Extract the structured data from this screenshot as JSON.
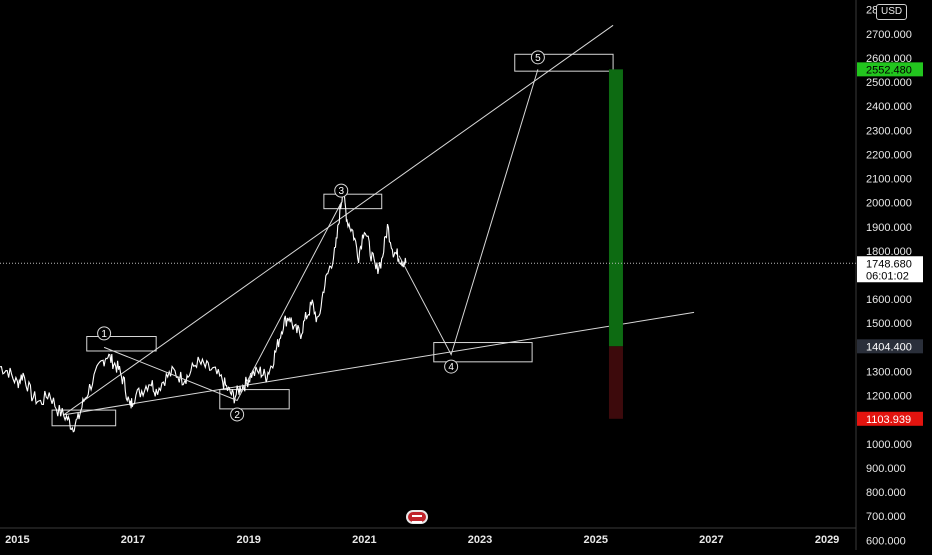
{
  "currency": "USD",
  "header_tick": "28",
  "colors": {
    "background": "#000000",
    "price_line": "#ffffff",
    "overlay_line": "#d8d8d8",
    "target_bar": "#0d6b12",
    "stop_bar": "#3d0a0c",
    "target_label_bg": "#22c51e",
    "stop_label_bg": "#e3140f",
    "current_label_bg": "#ffffff",
    "entry_label_bg": "#2a2f3a"
  },
  "price_labels": {
    "target": "2552.480",
    "current": "1748.680",
    "countdown": "06:01:02",
    "entry": "1404.400",
    "stop": "1103.939"
  },
  "wave_labels": [
    "1",
    "2",
    "3",
    "4",
    "5"
  ],
  "chart_data": {
    "type": "line",
    "title": "",
    "xlabel": "",
    "ylabel": "",
    "ylim": [
      560,
      2840
    ],
    "xlim": [
      2014.7,
      2029.5
    ],
    "grid": false,
    "x_ticks": [
      "2015",
      "2017",
      "2019",
      "2021",
      "2023",
      "2025",
      "2027",
      "2029"
    ],
    "y_ticks": [
      "600.000",
      "700.000",
      "800.000",
      "900.000",
      "1000.000",
      "1100.000",
      "1200.000",
      "1300.000",
      "1400.000",
      "1500.000",
      "1600.000",
      "1700.000",
      "1800.000",
      "1900.000",
      "2000.000",
      "2100.000",
      "2200.000",
      "2300.000",
      "2400.000",
      "2500.000",
      "2600.000",
      "2700.000"
    ],
    "series": [
      {
        "values": [
          [
            2014.7,
            1320
          ],
          [
            2014.85,
            1300
          ],
          [
            2015.0,
            1250
          ],
          [
            2015.1,
            1290
          ],
          [
            2015.25,
            1200
          ],
          [
            2015.4,
            1170
          ],
          [
            2015.55,
            1210
          ],
          [
            2015.7,
            1140
          ],
          [
            2015.85,
            1110
          ],
          [
            2015.95,
            1070
          ],
          [
            2016.05,
            1100
          ],
          [
            2016.15,
            1180
          ],
          [
            2016.3,
            1260
          ],
          [
            2016.45,
            1330
          ],
          [
            2016.55,
            1370
          ],
          [
            2016.65,
            1340
          ],
          [
            2016.75,
            1310
          ],
          [
            2016.85,
            1250
          ],
          [
            2016.95,
            1150
          ],
          [
            2017.0,
            1190
          ],
          [
            2017.15,
            1220
          ],
          [
            2017.3,
            1260
          ],
          [
            2017.4,
            1220
          ],
          [
            2017.55,
            1270
          ],
          [
            2017.7,
            1300
          ],
          [
            2017.85,
            1270
          ],
          [
            2017.95,
            1280
          ],
          [
            2018.1,
            1340
          ],
          [
            2018.25,
            1320
          ],
          [
            2018.4,
            1300
          ],
          [
            2018.55,
            1260
          ],
          [
            2018.65,
            1220
          ],
          [
            2018.75,
            1195
          ],
          [
            2018.85,
            1230
          ],
          [
            2018.95,
            1250
          ],
          [
            2019.05,
            1290
          ],
          [
            2019.2,
            1300
          ],
          [
            2019.3,
            1280
          ],
          [
            2019.4,
            1330
          ],
          [
            2019.5,
            1410
          ],
          [
            2019.6,
            1500
          ],
          [
            2019.7,
            1530
          ],
          [
            2019.8,
            1470
          ],
          [
            2019.9,
            1460
          ],
          [
            2020.0,
            1530
          ],
          [
            2020.1,
            1580
          ],
          [
            2020.2,
            1500
          ],
          [
            2020.3,
            1650
          ],
          [
            2020.4,
            1730
          ],
          [
            2020.5,
            1800
          ],
          [
            2020.58,
            1970
          ],
          [
            2020.63,
            2060
          ],
          [
            2020.7,
            1930
          ],
          [
            2020.8,
            1880
          ],
          [
            2020.9,
            1780
          ],
          [
            2021.0,
            1900
          ],
          [
            2021.1,
            1800
          ],
          [
            2021.2,
            1720
          ],
          [
            2021.3,
            1760
          ],
          [
            2021.4,
            1900
          ],
          [
            2021.5,
            1800
          ],
          [
            2021.58,
            1780
          ],
          [
            2021.65,
            1760
          ],
          [
            2021.72,
            1750
          ]
        ]
      }
    ],
    "wave_points": [
      {
        "label": "1",
        "x": 2016.5,
        "y": 1400
      },
      {
        "label": "2",
        "x": 2018.8,
        "y": 1180
      },
      {
        "label": "3",
        "x": 2020.6,
        "y": 2000
      },
      {
        "label": "4",
        "x": 2022.5,
        "y": 1370
      },
      {
        "label": "5",
        "x": 2024.0,
        "y": 2552.48
      }
    ],
    "trendlines": [
      {
        "from": [
          2015.8,
          1120
        ],
        "to": [
          2025.3,
          2735
        ]
      },
      {
        "from": [
          2015.8,
          1120
        ],
        "to": [
          2026.7,
          1545
        ]
      }
    ],
    "range_boxes": [
      {
        "x": [
          2015.6,
          2016.7
        ],
        "y": [
          1075,
          1140
        ]
      },
      {
        "x": [
          2016.2,
          2017.4
        ],
        "y": [
          1385,
          1445
        ]
      },
      {
        "x": [
          2018.5,
          2019.7
        ],
        "y": [
          1145,
          1225
        ]
      },
      {
        "x": [
          2020.3,
          2021.3
        ],
        "y": [
          1975,
          2035
        ]
      },
      {
        "x": [
          2022.2,
          2023.9
        ],
        "y": [
          1340,
          1420
        ]
      },
      {
        "x": [
          2023.6,
          2025.3
        ],
        "y": [
          2545,
          2615
        ]
      }
    ],
    "position": {
      "x": 2025.35,
      "entry": 1404.4,
      "target": 2552.48,
      "stop": 1103.939
    },
    "current_price": 1748.68
  }
}
